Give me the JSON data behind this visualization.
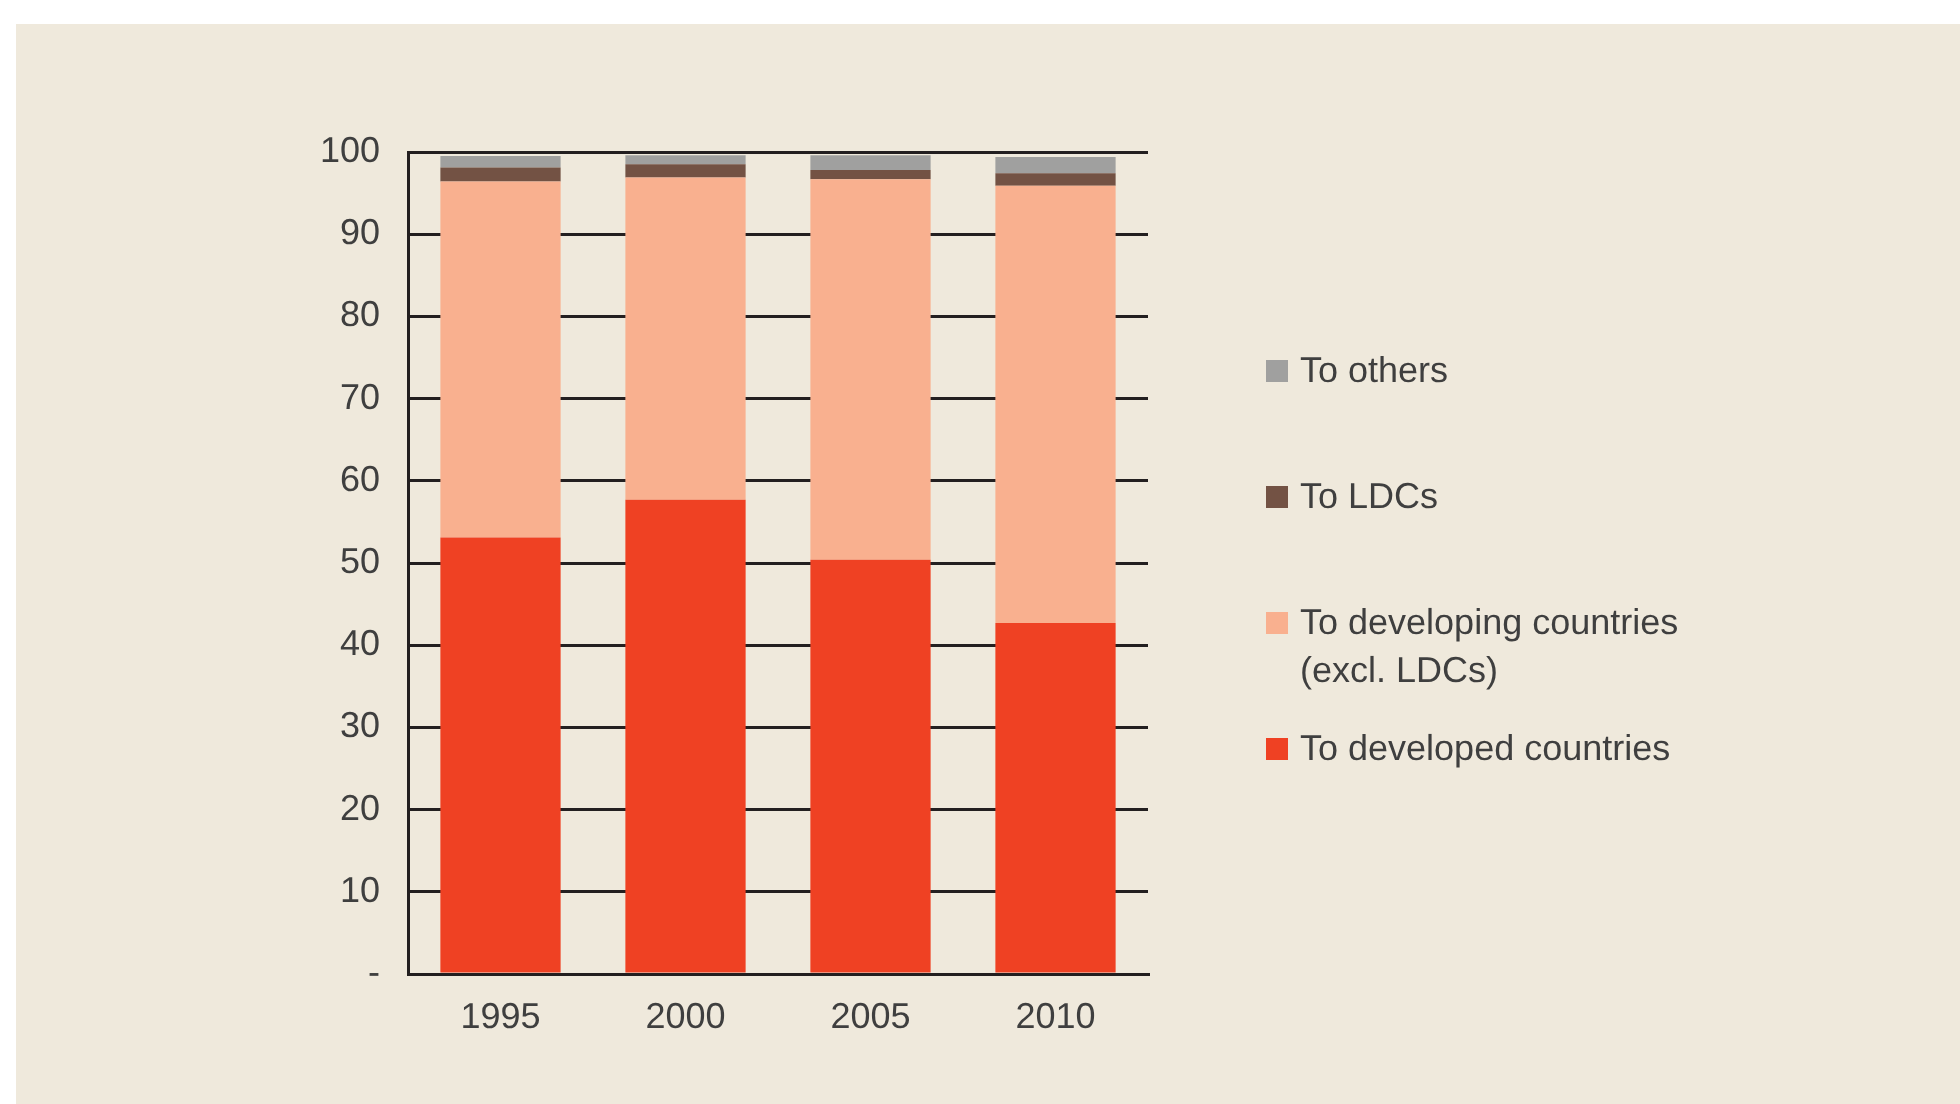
{
  "chart_data": {
    "type": "bar",
    "stacked": true,
    "categories": [
      "1995",
      "2000",
      "2005",
      "2010"
    ],
    "series": [
      {
        "name": "To developed countries",
        "color": "#ef4123",
        "values": [
          53.1,
          57.7,
          50.4,
          42.7
        ]
      },
      {
        "name": "To developing countries (excl. LDCs)",
        "color": "#f9b08f",
        "values": [
          43.3,
          39.2,
          46.3,
          53.2
        ]
      },
      {
        "name": "To LDCs",
        "color": "#735244",
        "values": [
          1.7,
          1.6,
          1.1,
          1.5
        ]
      },
      {
        "name": "To others",
        "color": "#a0a09f",
        "values": [
          1.4,
          1.1,
          1.8,
          2.0
        ]
      }
    ],
    "ylim": [
      0,
      100
    ],
    "yticks": [
      {
        "value": 0,
        "label": "-"
      },
      10,
      20,
      30,
      40,
      50,
      60,
      70,
      80,
      90,
      100
    ],
    "grid": "y",
    "legend": "right"
  }
}
